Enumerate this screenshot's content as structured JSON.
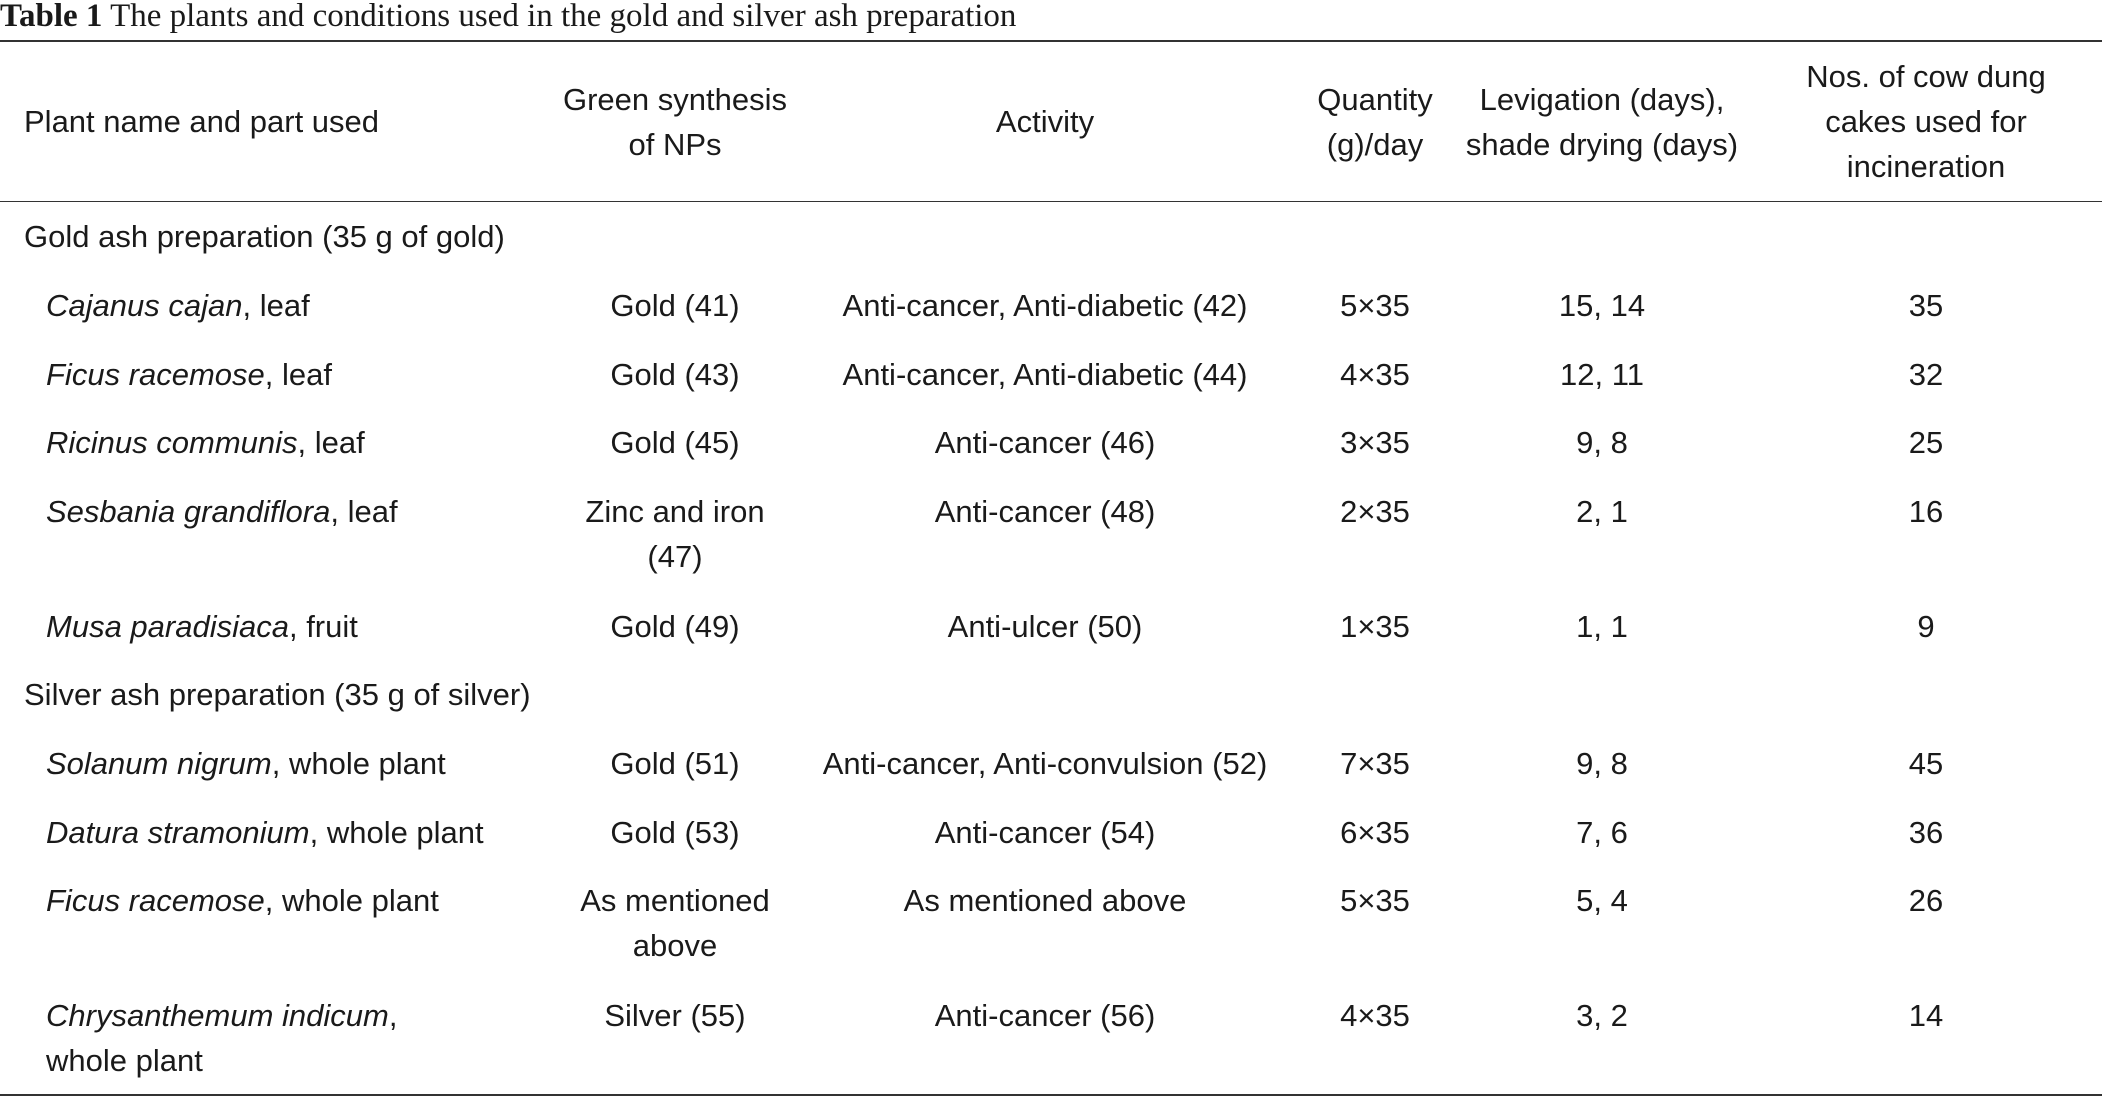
{
  "caption": {
    "label": "Table 1",
    "title": "The plants and conditions used in the gold and silver ash preparation"
  },
  "headers": {
    "plant": "Plant name and part used",
    "synthesis": [
      "Green synthesis",
      "of NPs"
    ],
    "activity": "Activity",
    "quantity": [
      "Quantity",
      "(g)/day"
    ],
    "levigation": [
      "Levigation (days),",
      "shade drying (days)"
    ],
    "cakes": [
      "Nos. of cow dung",
      "cakes used for",
      "incineration"
    ]
  },
  "sections": [
    {
      "title": "Gold ash preparation (35 g of gold)",
      "rows": [
        {
          "species": "Cajanus cajan",
          "part": ", leaf",
          "synthesis": [
            "Gold (41)"
          ],
          "activity": "Anti-cancer, Anti-diabetic (42)",
          "quantity": "5×35",
          "levigation": "15, 14",
          "cakes": "35"
        },
        {
          "species": "Ficus racemose",
          "part": ", leaf",
          "synthesis": [
            "Gold (43)"
          ],
          "activity": "Anti-cancer, Anti-diabetic (44)",
          "quantity": "4×35",
          "levigation": "12, 11",
          "cakes": "32"
        },
        {
          "species": "Ricinus communis",
          "part": ", leaf",
          "synthesis": [
            "Gold (45)"
          ],
          "activity": "Anti-cancer (46)",
          "quantity": "3×35",
          "levigation": "9, 8",
          "cakes": "25"
        },
        {
          "species": "Sesbania grandiflora",
          "part": ", leaf",
          "synthesis": [
            "Zinc and iron",
            "(47)"
          ],
          "activity": "Anti-cancer (48)",
          "quantity": "2×35",
          "levigation": "2, 1",
          "cakes": "16"
        },
        {
          "species": "Musa paradisiaca",
          "part": ", fruit",
          "synthesis": [
            "Gold (49)"
          ],
          "activity": "Anti-ulcer (50)",
          "quantity": "1×35",
          "levigation": "1, 1",
          "cakes": "9"
        }
      ]
    },
    {
      "title": "Silver ash preparation (35 g of silver)",
      "rows": [
        {
          "species": "Solanum nigrum",
          "part": ", whole plant",
          "synthesis": [
            "Gold (51)"
          ],
          "activity": "Anti-cancer, Anti-convulsion (52)",
          "quantity": "7×35",
          "levigation": "9, 8",
          "cakes": "45"
        },
        {
          "species": "Datura stramonium",
          "part": ", whole plant",
          "synthesis": [
            "Gold (53)"
          ],
          "activity": "Anti-cancer (54)",
          "quantity": "6×35",
          "levigation": "7, 6",
          "cakes": "36"
        },
        {
          "species": "Ficus racemose",
          "part": ", whole plant",
          "synthesis": [
            "As mentioned",
            "above"
          ],
          "activity": "As mentioned above",
          "quantity": "5×35",
          "levigation": "5, 4",
          "cakes": "26"
        },
        {
          "species": "Chrysanthemum indicum",
          "part": ",",
          "part_line2": "whole plant",
          "synthesis": [
            "Silver (55)"
          ],
          "activity": "Anti-cancer (56)",
          "quantity": "4×35",
          "levigation": "3, 2",
          "cakes": "14"
        }
      ]
    }
  ]
}
